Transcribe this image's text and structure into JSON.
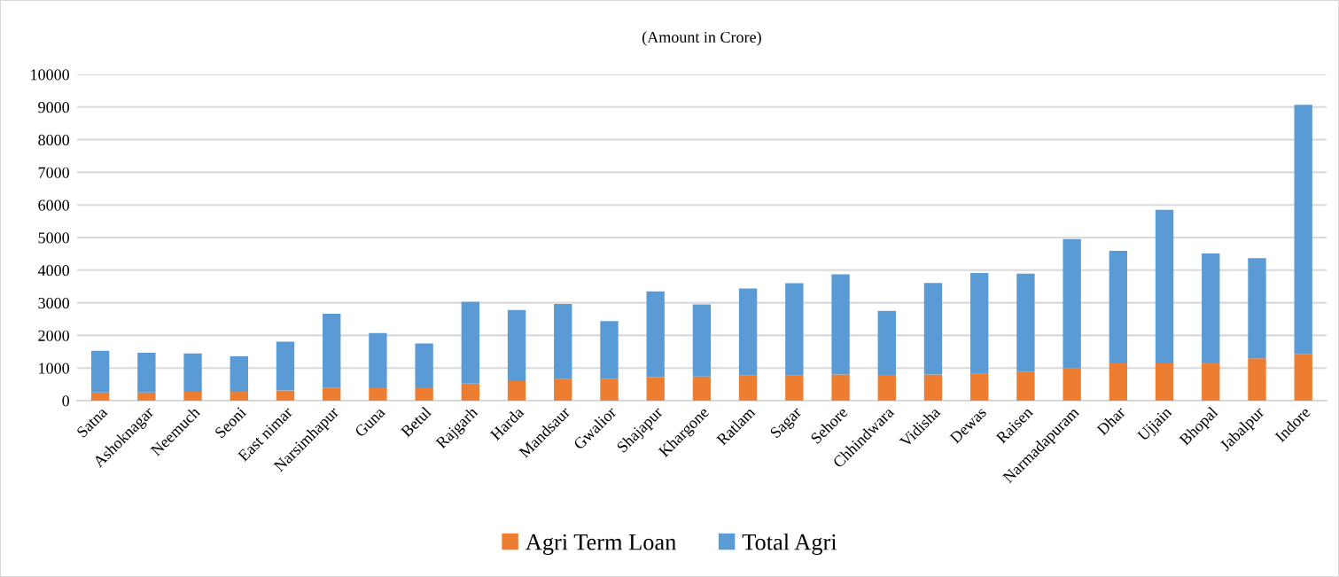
{
  "chart_data": {
    "type": "bar",
    "title": "(Amount in Crore)",
    "categories": [
      "Satna",
      "Ashoknagar",
      "Neemuch",
      "Seoni",
      "East nimar",
      "Narsimhapur",
      "Guna",
      "Betul",
      "Rajgarh",
      "Harda",
      "Mandsaur",
      "Gwalior",
      "Shajapur",
      "Khargone",
      "Ratlam",
      "Sagar",
      "Sehore",
      "Chhindwara",
      "Vidisha",
      "Dewas",
      "Raisen",
      "Narmadapuram",
      "Dhar",
      "Ujjain",
      "Bhopal",
      "Jabalpur",
      "Indore"
    ],
    "series": [
      {
        "name": "Agri Term Loan",
        "color": "#ed7d31",
        "values": [
          250,
          250,
          270,
          270,
          310,
          400,
          410,
          410,
          520,
          600,
          660,
          660,
          720,
          740,
          770,
          770,
          800,
          790,
          800,
          840,
          890,
          1000,
          1140,
          1140,
          1170,
          1300,
          1430
        ]
      },
      {
        "name": "Total Agri",
        "color": "#5b9bd5",
        "values": [
          1280,
          1220,
          1180,
          1090,
          1500,
          2260,
          1660,
          1340,
          2510,
          2180,
          2300,
          1780,
          2630,
          2210,
          2670,
          2830,
          3070,
          1960,
          2810,
          3070,
          3000,
          3950,
          3450,
          4710,
          3340,
          3070,
          7640
        ]
      }
    ],
    "stacked": true,
    "ylim": [
      0,
      10000
    ],
    "yticks": [
      0,
      1000,
      2000,
      3000,
      4000,
      5000,
      6000,
      7000,
      8000,
      9000,
      10000
    ],
    "grid": "y",
    "legend": "bottom"
  }
}
